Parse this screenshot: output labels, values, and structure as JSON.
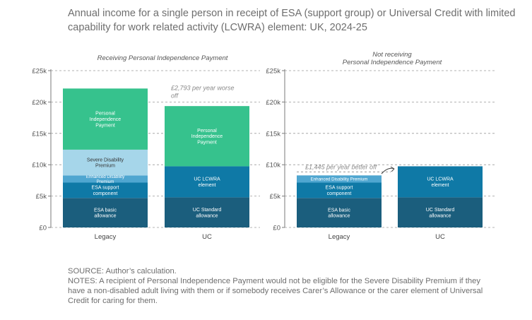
{
  "title": "Annual income for a single person in receipt of ESA (support group) or Universal Credit with limited capability for work related activity (LCWRA) element: UK, 2024-25",
  "source": "SOURCE: Author’s calculation.",
  "notes": "NOTES: A recipient of Personal Independence Payment would not be eligible for the Severe Disability Premium if they have a non-disabled adult living with them or if somebody receives Carer’s Allowance or the carer element of Universal Credit for caring for them.",
  "colors": {
    "basic": "#1b5e7d",
    "lcwra": "#0f79a6",
    "enhanced": "#4fa6d0",
    "sdp": "#a6d6ea",
    "pip": "#36c28d",
    "axis": "#7a7a7a",
    "annotation": "#8a8a8a"
  },
  "chart_data": [
    {
      "type": "bar",
      "subtitle": "Receiving Personal Independence Payment",
      "categories": [
        "Legacy",
        "UC"
      ],
      "ylim": [
        0,
        25000
      ],
      "yticks": [
        "£0",
        "£5k",
        "£10k",
        "£15k",
        "£20k",
        "£25k"
      ],
      "grid": true,
      "stacked": true,
      "bars": [
        {
          "category": "Legacy",
          "segments": [
            {
              "label": "ESA basic\nallowance",
              "value": 4700,
              "color": "basic"
            },
            {
              "label": "ESA support\ncomponent",
              "value": 2450,
              "color": "lcwra"
            },
            {
              "label": "Enhanced Disability\nPremium",
              "value": 1150,
              "color": "enhanced"
            },
            {
              "label": "Severe Disability\nPremium",
              "value": 4100,
              "color": "sdp"
            },
            {
              "label": "Personal\nIndependence\nPayment",
              "value": 9750,
              "color": "pip"
            }
          ]
        },
        {
          "category": "UC",
          "segments": [
            {
              "label": "UC Standard\nallowance",
              "value": 4800,
              "color": "basic"
            },
            {
              "label": "UC LCWRA\nelement",
              "value": 4950,
              "color": "lcwra"
            },
            {
              "label": "Personal\nIndependence\nPayment",
              "value": 9600,
              "color": "pip"
            }
          ]
        }
      ],
      "annotation": {
        "text": "£2,793 per year worse\noff",
        "value": 22150
      }
    },
    {
      "type": "bar",
      "subtitle": "Not receiving\nPersonal Independence Payment",
      "categories": [
        "Legacy",
        "UC"
      ],
      "ylim": [
        0,
        25000
      ],
      "yticks": [
        "£0",
        "£5k",
        "£10k",
        "£15k",
        "£20k",
        "£25k"
      ],
      "grid": true,
      "stacked": true,
      "bars": [
        {
          "category": "Legacy",
          "segments": [
            {
              "label": "ESA basic\nallowance",
              "value": 4700,
              "color": "basic"
            },
            {
              "label": "ESA support\ncomponent",
              "value": 2450,
              "color": "lcwra"
            },
            {
              "label": "Enhanced Disability Premium",
              "value": 1150,
              "color": "enhanced"
            }
          ]
        },
        {
          "category": "UC",
          "segments": [
            {
              "label": "UC Standard\nallowance",
              "value": 4800,
              "color": "basic"
            },
            {
              "label": "UC LCWRA\nelement",
              "value": 4950,
              "color": "lcwra"
            }
          ]
        }
      ],
      "annotation": {
        "text": "£1,445 per year better off",
        "value": 8300
      }
    }
  ]
}
